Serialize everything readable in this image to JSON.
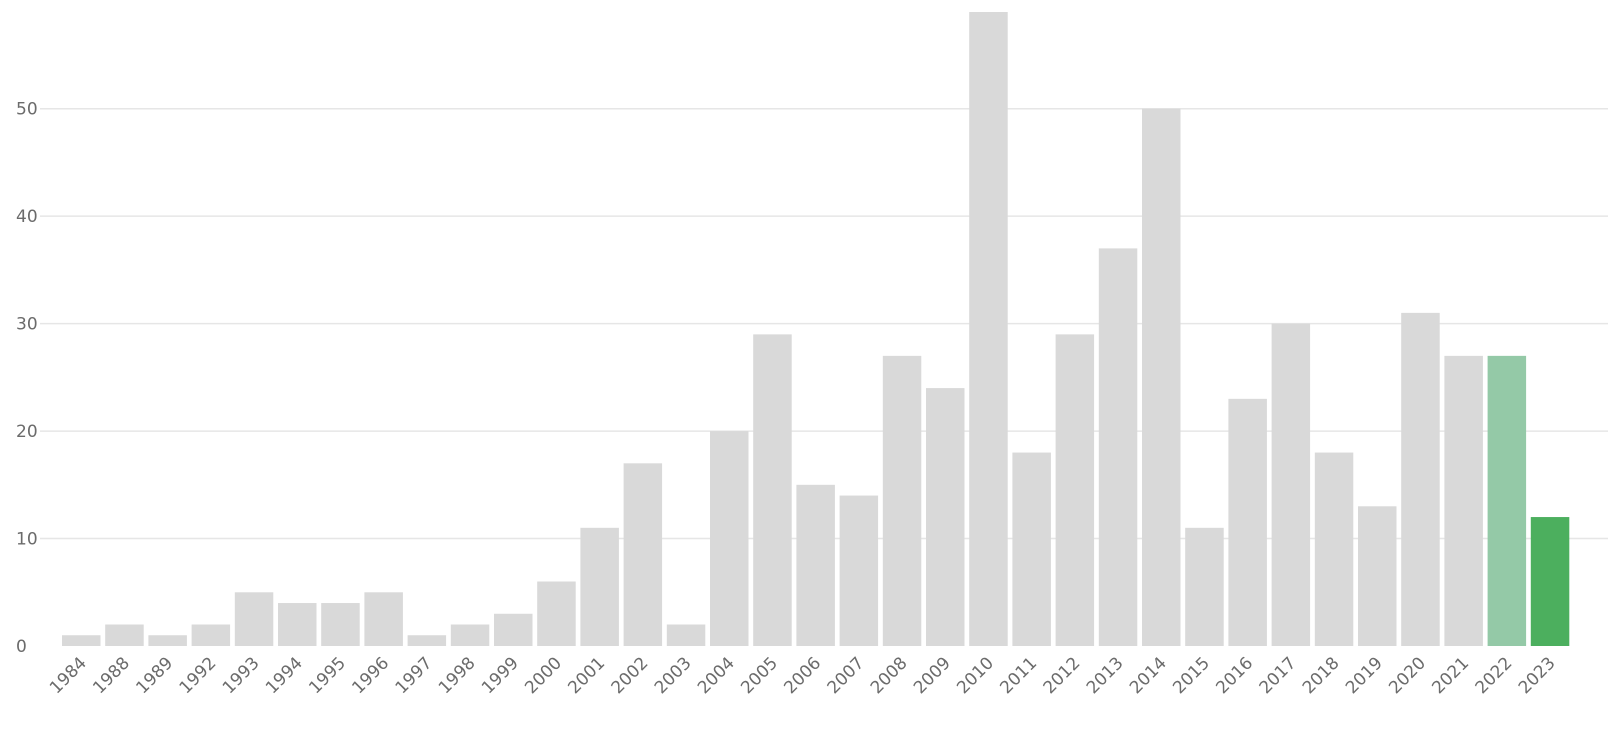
{
  "chart_data": {
    "type": "bar",
    "title": "",
    "xlabel": "",
    "ylabel": "",
    "ylim": [
      0,
      59
    ],
    "yticks": [
      0,
      10,
      20,
      30,
      40,
      50
    ],
    "grid": true,
    "categories": [
      "1984",
      "1988",
      "1989",
      "1992",
      "1993",
      "1994",
      "1995",
      "1996",
      "1997",
      "1998",
      "1999",
      "2000",
      "2001",
      "2002",
      "2003",
      "2004",
      "2005",
      "2006",
      "2007",
      "2008",
      "2009",
      "2010",
      "2011",
      "2012",
      "2013",
      "2014",
      "2015",
      "2016",
      "2017",
      "2018",
      "2019",
      "2020",
      "2021",
      "2022",
      "2023"
    ],
    "values": [
      1,
      2,
      1,
      2,
      5,
      4,
      4,
      5,
      1,
      2,
      3,
      6,
      11,
      17,
      2,
      20,
      29,
      15,
      14,
      27,
      24,
      59,
      18,
      29,
      37,
      50,
      11,
      23,
      30,
      18,
      13,
      31,
      27,
      27,
      12
    ],
    "colors": {
      "default": "#d9d9d9",
      "2022": "#94c9a7",
      "2023": "#4caf5e"
    }
  }
}
